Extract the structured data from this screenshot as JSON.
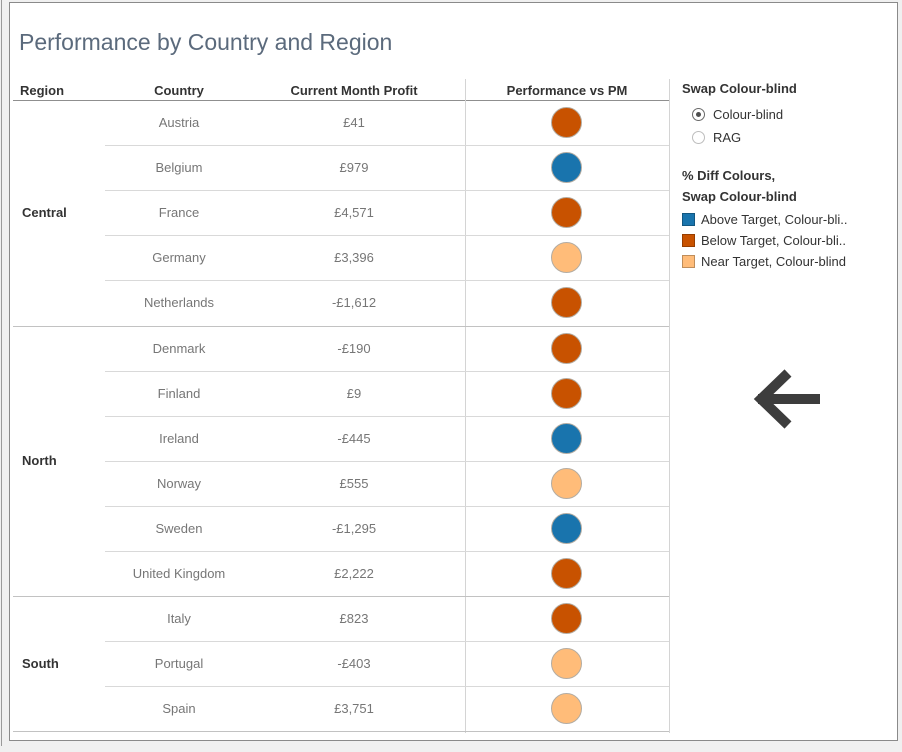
{
  "title": "Performance by Country and Region",
  "table": {
    "headers": {
      "region": "Region",
      "country": "Country",
      "profit": "Current Month Profit",
      "performance": "Performance vs PM"
    },
    "regions": [
      {
        "name": "Central",
        "rows": [
          {
            "country": "Austria",
            "profit": "£41",
            "status": "below"
          },
          {
            "country": "Belgium",
            "profit": "£979",
            "status": "above"
          },
          {
            "country": "France",
            "profit": "£4,571",
            "status": "below"
          },
          {
            "country": "Germany",
            "profit": "£3,396",
            "status": "near"
          },
          {
            "country": "Netherlands",
            "profit": "-£1,612",
            "status": "below"
          }
        ]
      },
      {
        "name": "North",
        "rows": [
          {
            "country": "Denmark",
            "profit": "-£190",
            "status": "below"
          },
          {
            "country": "Finland",
            "profit": "£9",
            "status": "below"
          },
          {
            "country": "Ireland",
            "profit": "-£445",
            "status": "above"
          },
          {
            "country": "Norway",
            "profit": "£555",
            "status": "near"
          },
          {
            "country": "Sweden",
            "profit": "-£1,295",
            "status": "above"
          },
          {
            "country": "United Kingdom",
            "profit": "£2,222",
            "status": "below"
          }
        ]
      },
      {
        "name": "South",
        "rows": [
          {
            "country": "Italy",
            "profit": "£823",
            "status": "below"
          },
          {
            "country": "Portugal",
            "profit": "-£403",
            "status": "near"
          },
          {
            "country": "Spain",
            "profit": "£3,751",
            "status": "near"
          }
        ]
      }
    ]
  },
  "status_colors": {
    "above": "#1974ad",
    "below": "#c85200",
    "near": "#ffbc79"
  },
  "controls": {
    "swap_title": "Swap Colour-blind",
    "options": [
      {
        "label": "Colour-blind",
        "selected": true
      },
      {
        "label": "RAG",
        "selected": false
      }
    ]
  },
  "legend": {
    "title_line1": "% Diff Colours,",
    "title_line2": "Swap Colour-blind",
    "items": [
      {
        "label": "Above Target, Colour-bli..",
        "color": "#1974ad"
      },
      {
        "label": "Below Target, Colour-bli..",
        "color": "#c85200"
      },
      {
        "label": "Near Target, Colour-blind",
        "color": "#ffbc79"
      }
    ]
  },
  "icons": {
    "annotation": "left-arrow-icon"
  }
}
